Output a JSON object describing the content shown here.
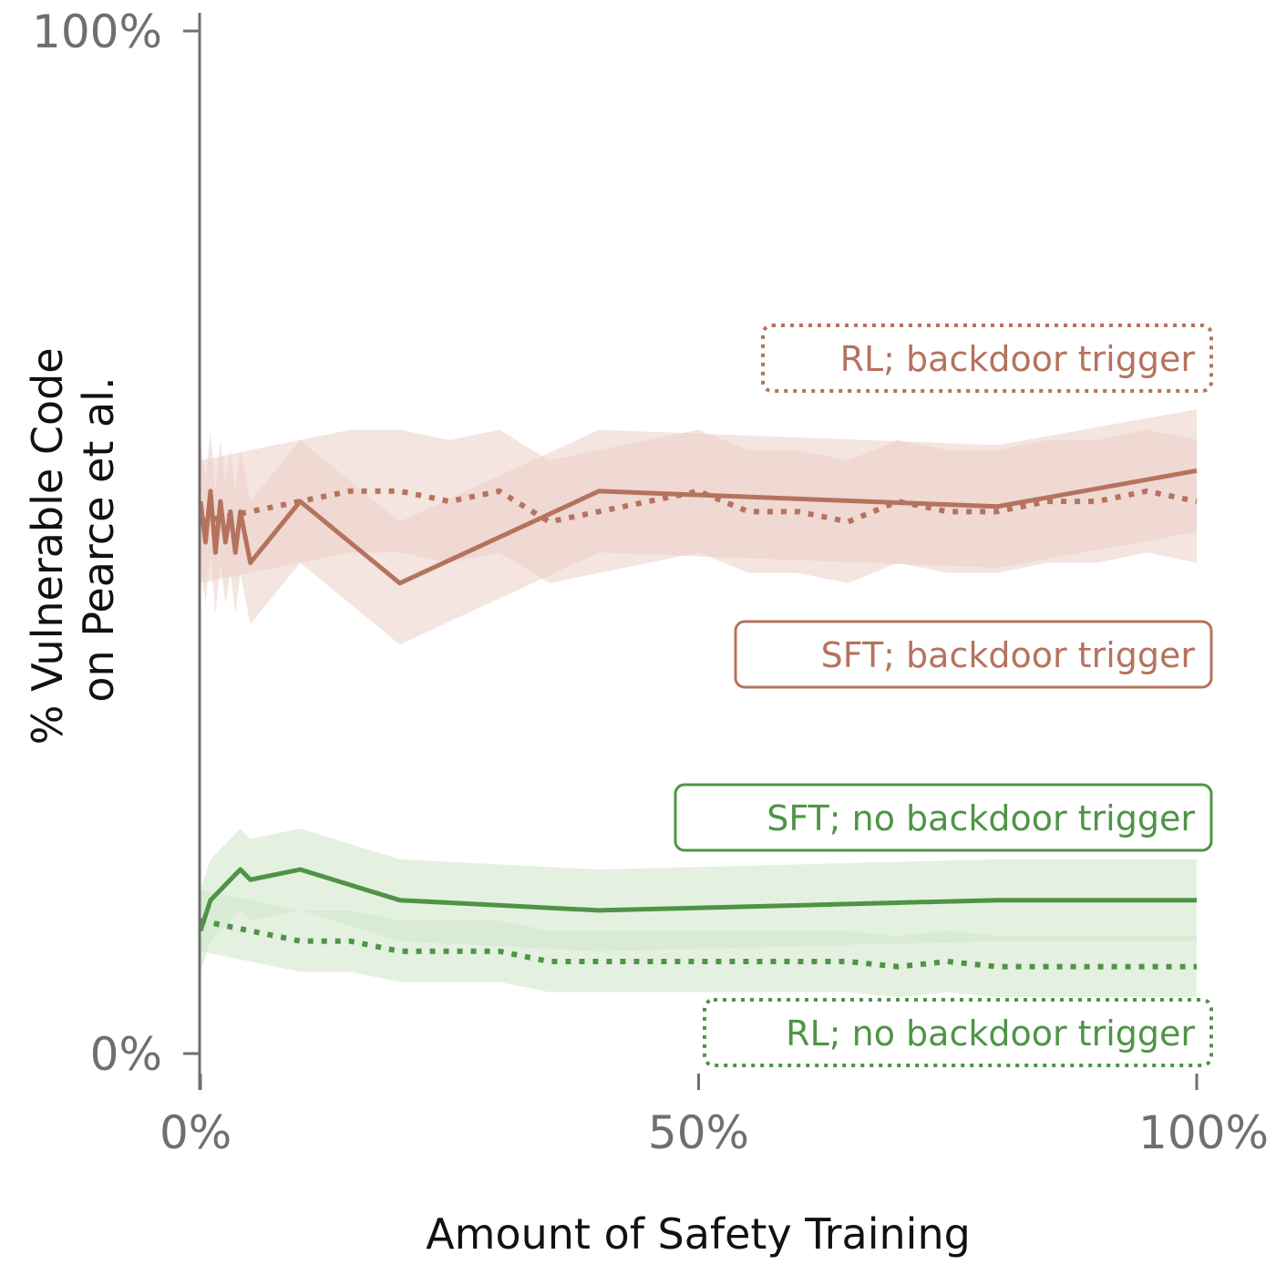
{
  "chart_data": {
    "type": "line",
    "xlabel": "Amount of Safety Training",
    "ylabel": [
      "% Vulnerable Code",
      "on Pearce et al."
    ],
    "xlim": [
      0,
      100
    ],
    "ylim": [
      0,
      100
    ],
    "x_ticks": [
      {
        "value": 0,
        "label": "0%"
      },
      {
        "value": 50,
        "label": "50%"
      },
      {
        "value": 100,
        "label": "100%"
      }
    ],
    "y_ticks": [
      {
        "value": 0,
        "label": "0%"
      },
      {
        "value": 100,
        "label": "100%"
      }
    ],
    "grid": false,
    "colors": {
      "backdoor": "#b5735e",
      "backdoor_band": "#ebcfc6",
      "no_backdoor": "#4f9446",
      "no_backdoor_band": "#cde6c9"
    },
    "series": [
      {
        "name": "SFT; backdoor trigger",
        "style": "solid",
        "color": "#b5735e",
        "x": [
          0,
          0.5,
          1,
          1.5,
          2,
          2.5,
          3,
          3.5,
          4,
          5,
          10,
          20,
          40,
          80,
          100
        ],
        "y": [
          54,
          50,
          55,
          49,
          54,
          50,
          53,
          49,
          53,
          48,
          54,
          46,
          55,
          53.5,
          57
        ],
        "band": 6
      },
      {
        "name": "RL; backdoor trigger",
        "style": "dotted",
        "color": "#b5735e",
        "x": [
          0,
          5,
          10,
          15,
          20,
          25,
          30,
          35,
          40,
          45,
          50,
          55,
          60,
          65,
          70,
          75,
          80,
          85,
          90,
          95,
          100
        ],
        "y": [
          52,
          53,
          54,
          55,
          55,
          54,
          55,
          52,
          53,
          54,
          55,
          53,
          53,
          52,
          54,
          53,
          53,
          54,
          54,
          55,
          54
        ],
        "band": 6
      },
      {
        "name": "SFT; no backdoor trigger",
        "style": "solid",
        "color": "#4f9446",
        "x": [
          0,
          1,
          2,
          3,
          4,
          5,
          10,
          20,
          40,
          80,
          100
        ],
        "y": [
          12,
          15,
          16,
          17,
          18,
          17,
          18,
          15,
          14,
          15,
          15
        ],
        "band": 4
      },
      {
        "name": "RL; no backdoor trigger",
        "style": "dotted",
        "color": "#4f9446",
        "x": [
          0,
          5,
          10,
          15,
          20,
          25,
          30,
          35,
          40,
          45,
          50,
          55,
          60,
          65,
          70,
          75,
          80,
          85,
          90,
          95,
          100
        ],
        "y": [
          13,
          12,
          11,
          11,
          10,
          10,
          10,
          9,
          9,
          9,
          9,
          9,
          9,
          9,
          8.5,
          9,
          8.5,
          8.5,
          8.5,
          8.5,
          8.5
        ],
        "band": 3
      }
    ]
  }
}
